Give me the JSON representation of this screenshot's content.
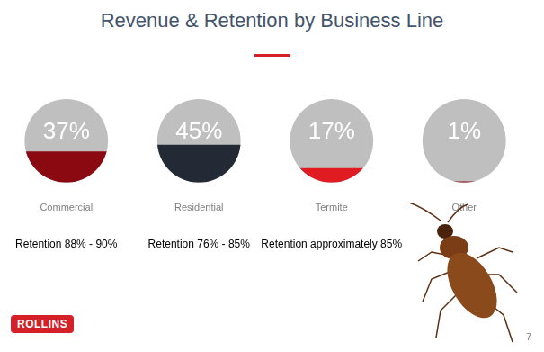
{
  "chart_data": {
    "type": "bar",
    "title": "Revenue & Retention by Business Line",
    "categories": [
      "Commercial",
      "Residential",
      "Termite",
      "Other"
    ],
    "values": [
      37,
      45,
      17,
      1
    ],
    "value_labels": [
      "37%",
      "45%",
      "17%",
      "1%"
    ],
    "colors": [
      "#8b0a12",
      "#232a36",
      "#e01b22",
      "#8b0a12"
    ],
    "annotations": [
      "Retention 88% - 90%",
      "Retention 76% - 85%",
      "Retention approximately 85%",
      null
    ],
    "data_labels": true,
    "tick_labels": "x",
    "grid": false
  },
  "logo": "ROLLINS",
  "page_number": "7"
}
